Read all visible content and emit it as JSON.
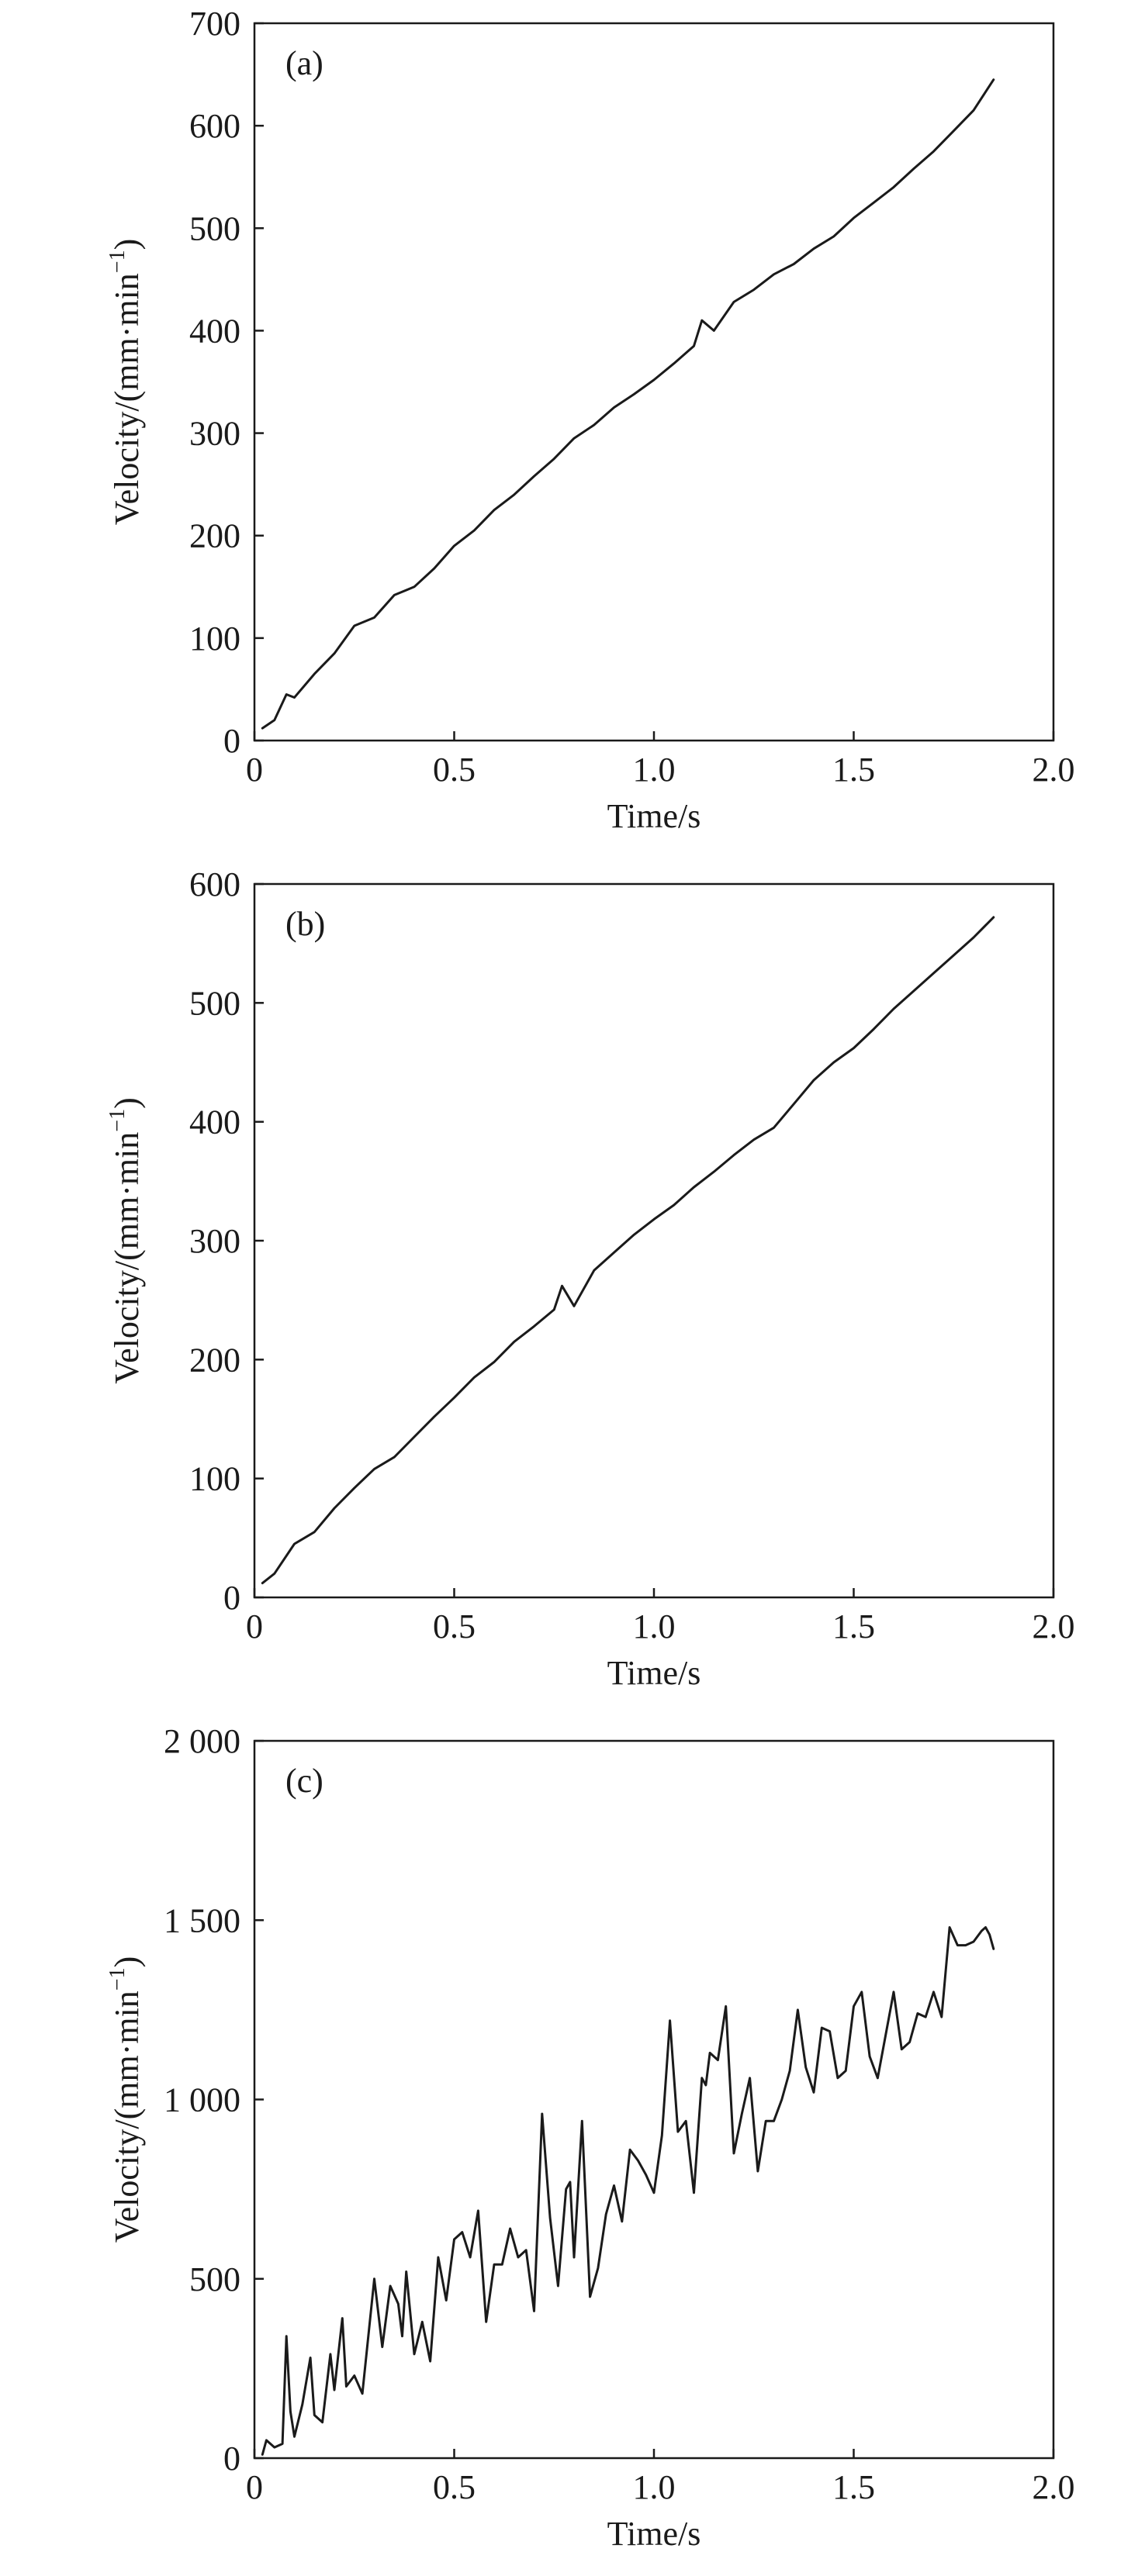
{
  "chart_data": [
    {
      "type": "line",
      "panel_label": "(a)",
      "xlabel": "Time/s",
      "ylabel_main": "Velocity/(mm·min",
      "ylabel_sup": "−1",
      "ylabel_close": ")",
      "xlim": [
        0,
        2.0
      ],
      "ylim": [
        0,
        700
      ],
      "xticks": [
        0,
        0.5,
        1.0,
        1.5,
        2.0
      ],
      "xtick_labels": [
        "0",
        "0.5",
        "1.0",
        "1.5",
        "2.0"
      ],
      "yticks": [
        0,
        100,
        200,
        300,
        400,
        500,
        600,
        700
      ],
      "ytick_labels": [
        "0",
        "100",
        "200",
        "300",
        "400",
        "500",
        "600",
        "700"
      ],
      "grid": false,
      "series": [
        {
          "x": [
            0.02,
            0.05,
            0.08,
            0.1,
            0.15,
            0.2,
            0.25,
            0.3,
            0.35,
            0.4,
            0.45,
            0.5,
            0.55,
            0.6,
            0.65,
            0.7,
            0.75,
            0.8,
            0.85,
            0.9,
            0.95,
            1.0,
            1.05,
            1.1,
            1.12,
            1.15,
            1.2,
            1.25,
            1.3,
            1.35,
            1.4,
            1.45,
            1.5,
            1.55,
            1.6,
            1.65,
            1.7,
            1.75,
            1.8,
            1.85
          ],
          "y": [
            12,
            20,
            45,
            42,
            65,
            85,
            112,
            120,
            142,
            150,
            168,
            190,
            205,
            225,
            240,
            258,
            275,
            295,
            308,
            325,
            338,
            352,
            368,
            385,
            410,
            400,
            428,
            440,
            455,
            465,
            480,
            492,
            510,
            525,
            540,
            558,
            575,
            595,
            615,
            645
          ]
        }
      ]
    },
    {
      "type": "line",
      "panel_label": "(b)",
      "xlabel": "Time/s",
      "ylabel_main": "Velocity/(mm·min",
      "ylabel_sup": "−1",
      "ylabel_close": ")",
      "xlim": [
        0,
        2.0
      ],
      "ylim": [
        0,
        600
      ],
      "xticks": [
        0,
        0.5,
        1.0,
        1.5,
        2.0
      ],
      "xtick_labels": [
        "0",
        "0.5",
        "1.0",
        "1.5",
        "2.0"
      ],
      "yticks": [
        0,
        100,
        200,
        300,
        400,
        500,
        600
      ],
      "ytick_labels": [
        "0",
        "100",
        "200",
        "300",
        "400",
        "500",
        "600"
      ],
      "grid": false,
      "series": [
        {
          "x": [
            0.02,
            0.05,
            0.1,
            0.15,
            0.2,
            0.25,
            0.3,
            0.35,
            0.4,
            0.45,
            0.5,
            0.55,
            0.6,
            0.65,
            0.7,
            0.75,
            0.77,
            0.8,
            0.85,
            0.9,
            0.95,
            1.0,
            1.05,
            1.1,
            1.15,
            1.2,
            1.25,
            1.3,
            1.35,
            1.4,
            1.45,
            1.5,
            1.55,
            1.6,
            1.65,
            1.7,
            1.75,
            1.8,
            1.85
          ],
          "y": [
            12,
            20,
            45,
            55,
            75,
            92,
            108,
            118,
            135,
            152,
            168,
            185,
            198,
            215,
            228,
            242,
            262,
            245,
            275,
            290,
            305,
            318,
            330,
            345,
            358,
            372,
            385,
            395,
            415,
            435,
            450,
            462,
            478,
            495,
            510,
            525,
            540,
            555,
            572
          ]
        }
      ]
    },
    {
      "type": "line",
      "panel_label": "(c)",
      "xlabel": "Time/s",
      "ylabel_main": "Velocity/(mm·min",
      "ylabel_sup": "−1",
      "ylabel_close": ")",
      "xlim": [
        0,
        2.0
      ],
      "ylim": [
        0,
        2000
      ],
      "xticks": [
        0,
        0.5,
        1.0,
        1.5,
        2.0
      ],
      "xtick_labels": [
        "0",
        "0.5",
        "1.0",
        "1.5",
        "2.0"
      ],
      "yticks": [
        0,
        500,
        1000,
        1500,
        2000
      ],
      "ytick_labels": [
        "0",
        "500",
        "1 000",
        "1 500",
        "2 000"
      ],
      "grid": false,
      "series": [
        {
          "x": [
            0.02,
            0.03,
            0.05,
            0.07,
            0.08,
            0.09,
            0.1,
            0.12,
            0.14,
            0.15,
            0.17,
            0.19,
            0.2,
            0.22,
            0.23,
            0.25,
            0.27,
            0.3,
            0.32,
            0.34,
            0.36,
            0.37,
            0.38,
            0.4,
            0.42,
            0.44,
            0.46,
            0.48,
            0.5,
            0.52,
            0.54,
            0.56,
            0.58,
            0.6,
            0.62,
            0.64,
            0.66,
            0.68,
            0.7,
            0.72,
            0.74,
            0.76,
            0.78,
            0.79,
            0.8,
            0.82,
            0.84,
            0.86,
            0.88,
            0.9,
            0.92,
            0.94,
            0.96,
            0.98,
            1.0,
            1.02,
            1.04,
            1.06,
            1.08,
            1.1,
            1.12,
            1.13,
            1.14,
            1.16,
            1.18,
            1.2,
            1.22,
            1.24,
            1.26,
            1.28,
            1.3,
            1.32,
            1.34,
            1.36,
            1.38,
            1.4,
            1.42,
            1.44,
            1.46,
            1.48,
            1.5,
            1.52,
            1.54,
            1.56,
            1.58,
            1.6,
            1.62,
            1.64,
            1.66,
            1.68,
            1.7,
            1.72,
            1.74,
            1.76,
            1.78,
            1.8,
            1.82,
            1.83,
            1.84,
            1.85
          ],
          "y": [
            10,
            50,
            30,
            40,
            340,
            130,
            60,
            150,
            280,
            120,
            100,
            290,
            190,
            390,
            200,
            230,
            180,
            500,
            310,
            480,
            430,
            340,
            520,
            290,
            380,
            270,
            560,
            440,
            610,
            630,
            560,
            690,
            380,
            540,
            540,
            640,
            560,
            580,
            410,
            960,
            670,
            480,
            750,
            770,
            560,
            940,
            450,
            530,
            680,
            760,
            660,
            860,
            830,
            790,
            740,
            900,
            1220,
            910,
            940,
            740,
            1060,
            1040,
            1130,
            1110,
            1260,
            850,
            960,
            1060,
            800,
            940,
            940,
            1000,
            1080,
            1250,
            1090,
            1020,
            1200,
            1190,
            1060,
            1080,
            1260,
            1300,
            1120,
            1060,
            1180,
            1300,
            1140,
            1160,
            1240,
            1230,
            1300,
            1230,
            1480,
            1430,
            1430,
            1440,
            1470,
            1480,
            1460,
            1420
          ]
        }
      ]
    }
  ]
}
